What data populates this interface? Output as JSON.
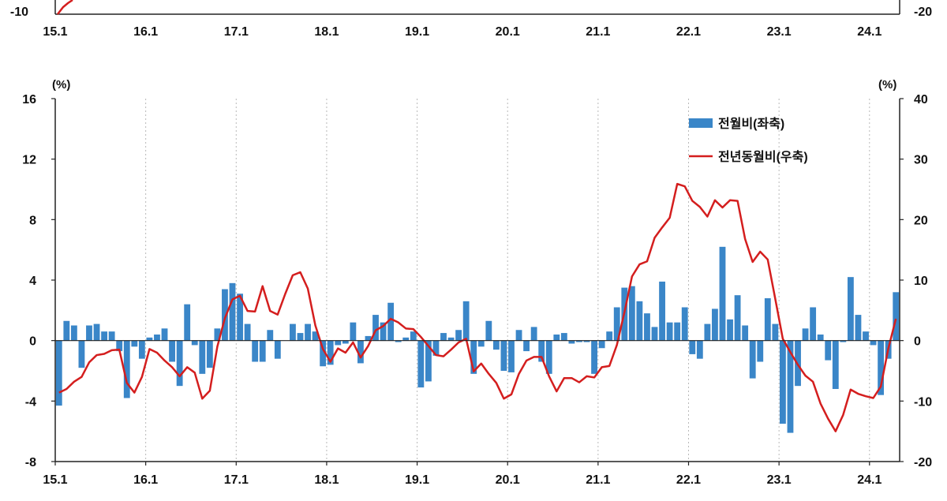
{
  "colors": {
    "bar": "#3a86c8",
    "line": "#d41e1e",
    "axis": "#222222",
    "grid": "#b9b9b9"
  },
  "top_panel": {
    "left_tick": "-10",
    "right_tick": "-20",
    "x_ticks": [
      "15.1",
      "16.1",
      "17.1",
      "18.1",
      "19.1",
      "20.1",
      "21.1",
      "22.1",
      "23.1",
      "24.1"
    ]
  },
  "chart_data": {
    "type": "bar+line",
    "x_ticks": [
      "15.1",
      "16.1",
      "17.1",
      "18.1",
      "19.1",
      "20.1",
      "21.1",
      "22.1",
      "23.1",
      "24.1"
    ],
    "left_unit": "(%)",
    "right_unit": "(%)",
    "left_axis": {
      "ylim": [
        -8,
        16
      ],
      "ticks": [
        -8,
        -4,
        0,
        4,
        8,
        12,
        16
      ]
    },
    "right_axis": {
      "ylim": [
        -20,
        40
      ],
      "ticks": [
        -20,
        -10,
        0,
        10,
        20,
        30,
        40
      ]
    },
    "legend": {
      "position": "top-right"
    },
    "grid": "vertical-dotted",
    "series": [
      {
        "name": "전월비(좌축)",
        "kind": "bar",
        "axis": "left",
        "values": [
          -4.3,
          1.3,
          1.0,
          -1.8,
          1.0,
          1.1,
          0.6,
          0.6,
          -0.7,
          -3.8,
          -0.4,
          -1.2,
          0.2,
          0.4,
          0.8,
          -1.4,
          -3.0,
          2.4,
          -0.3,
          -2.2,
          -1.8,
          0.8,
          3.4,
          3.8,
          3.1,
          1.1,
          -1.4,
          -1.4,
          0.7,
          -1.2,
          0.0,
          1.1,
          0.5,
          1.1,
          0.6,
          -1.7,
          -1.6,
          -0.3,
          -0.2,
          1.2,
          -1.5,
          0.3,
          1.7,
          1.2,
          2.5,
          -0.1,
          0.2,
          0.6,
          -3.1,
          -2.7,
          -1.0,
          0.5,
          0.2,
          0.7,
          2.6,
          -2.2,
          -0.4,
          1.3,
          -0.6,
          -2.0,
          -2.1,
          0.7,
          -0.7,
          0.9,
          -1.4,
          -2.2,
          0.4,
          0.5,
          -0.2,
          -0.1,
          -0.1,
          -2.2,
          -0.5,
          0.6,
          2.2,
          3.5,
          3.6,
          2.6,
          1.8,
          0.9,
          3.9,
          1.2,
          1.2,
          2.2,
          -0.9,
          -1.2,
          1.1,
          2.1,
          6.2,
          1.4,
          3.0,
          1.0,
          -2.5,
          -1.4,
          2.8,
          1.1,
          -5.5,
          -6.1,
          -3.0,
          0.8,
          2.2,
          0.4,
          -1.3,
          -3.2,
          -0.1,
          4.2,
          1.7,
          0.6,
          -0.3,
          -3.6,
          -1.2,
          3.2
        ]
      },
      {
        "name": "전년동월비(우축)",
        "kind": "line",
        "axis": "right",
        "values": [
          -8.6,
          -8.0,
          -6.8,
          -6.0,
          -3.6,
          -2.4,
          -2.2,
          -1.6,
          -1.5,
          -7.0,
          -8.6,
          -6.0,
          -1.4,
          -2.0,
          -3.3,
          -4.4,
          -5.9,
          -4.4,
          -5.3,
          -9.6,
          -8.3,
          -1.0,
          3.7,
          6.8,
          7.4,
          4.9,
          4.8,
          9.0,
          4.9,
          4.3,
          7.7,
          10.8,
          11.3,
          8.6,
          2.5,
          -1.4,
          -3.5,
          -1.3,
          -2.0,
          -0.3,
          -2.8,
          -0.9,
          1.7,
          2.4,
          3.6,
          3.0,
          2.0,
          1.9,
          0.6,
          -0.9,
          -2.4,
          -2.6,
          -1.5,
          -0.3,
          0.3,
          -5.1,
          -3.8,
          -5.5,
          -7.0,
          -9.6,
          -8.9,
          -5.5,
          -3.3,
          -2.7,
          -2.7,
          -5.9,
          -8.4,
          -6.2,
          -6.2,
          -6.9,
          -5.9,
          -6.1,
          -4.4,
          -4.2,
          -0.7,
          4.7,
          10.6,
          12.6,
          13.1,
          17.0,
          18.7,
          20.3,
          25.9,
          25.5,
          23.1,
          22.1,
          20.5,
          23.2,
          22.0,
          23.2,
          23.1,
          16.8,
          13.0,
          14.7,
          13.4,
          6.9,
          0.3,
          -1.9,
          -4.0,
          -5.8,
          -6.8,
          -10.4,
          -12.9,
          -15.0,
          -12.3,
          -8.1,
          -8.8,
          -9.2,
          -9.5,
          -7.6,
          -1.3,
          3.6
        ]
      }
    ]
  }
}
